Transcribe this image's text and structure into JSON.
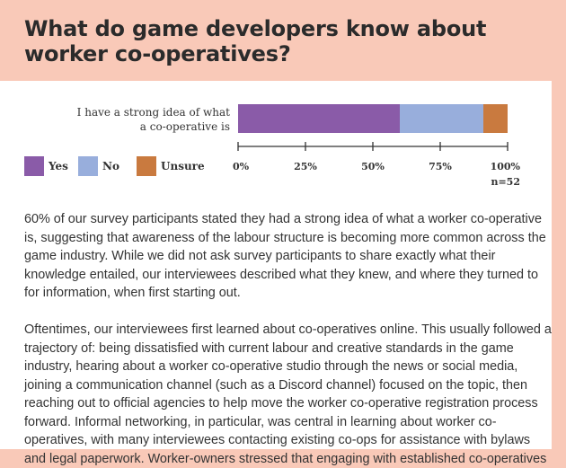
{
  "page": {
    "title": "What do game developers know about worker co-operatives?",
    "paragraphs": [
      "60% of our survey participants stated they had a strong idea of what a worker co-operative is, suggesting that awareness of the labour structure is becoming more common across the game industry. While we did not ask survey participants to share exactly what their knowledge entailed, our interviewees described what they knew, and where they turned to for information, when first starting out.",
      "Oftentimes, our interviewees first learned about co-operatives online. This usually followed a trajectory of: being dissatisfied with current labour and creative standards in the game industry, hearing about a worker co-operative studio through the news or social media, joining a communication channel (such as a Discord channel) focused on the topic, then reaching out to official agencies to help move the worker co-operative registration process forward. Informal networking, in particular, was central in learning about worker co-operatives, with many interviewees contacting existing co-ops for assistance with bylaws and legal paperwork. Worker-owners stressed that engaging with established co-operatives"
    ]
  },
  "chart_data": {
    "type": "bar",
    "orientation": "horizontal",
    "stacked": true,
    "categories": [
      "I have a strong idea of what a co-operative is"
    ],
    "category_lines": [
      "I have a strong idea of what",
      "a co-operative is"
    ],
    "series": [
      {
        "name": "Yes",
        "values": [
          60
        ],
        "color": "#8a5ba8"
      },
      {
        "name": "No",
        "values": [
          31
        ],
        "color": "#98aedc"
      },
      {
        "name": "Unsure",
        "values": [
          9
        ],
        "color": "#c97a3f"
      }
    ],
    "xlim": [
      0,
      100
    ],
    "x_ticks": [
      0,
      25,
      50,
      75,
      100
    ],
    "x_tick_labels": [
      "0%",
      "25%",
      "50%",
      "75%",
      "100%"
    ],
    "note": "n=52",
    "legend_position": "bottom-left",
    "grid": false
  }
}
